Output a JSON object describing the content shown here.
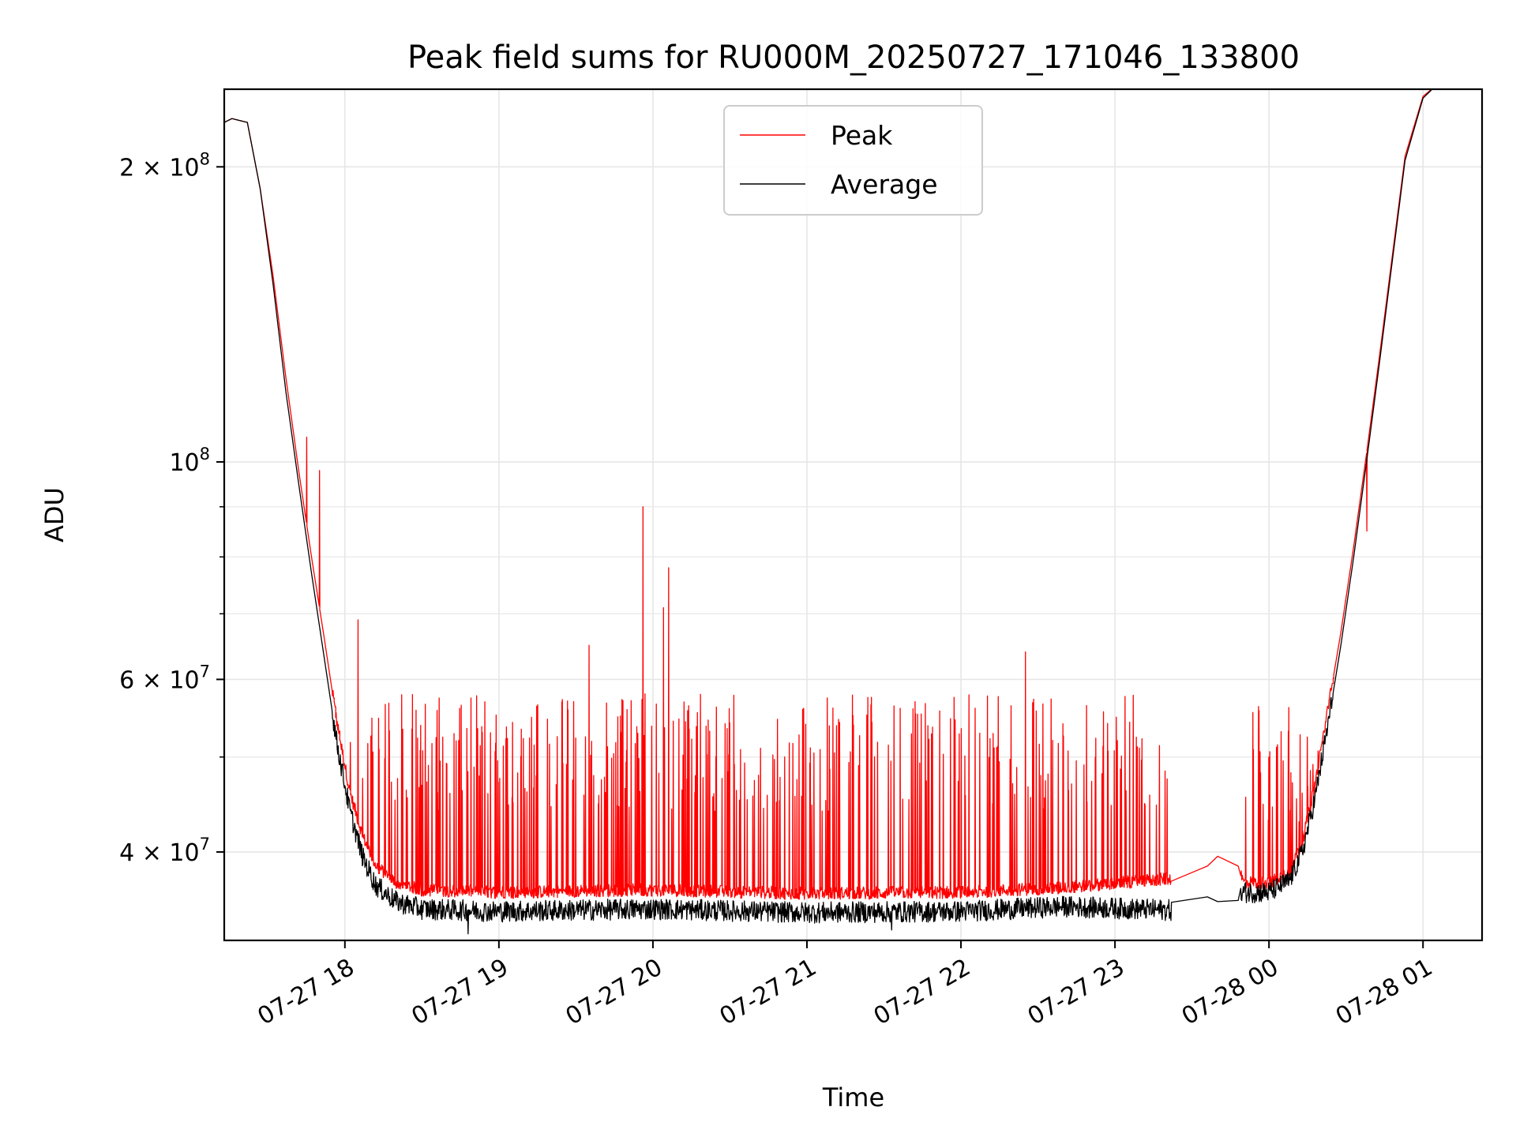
{
  "chart_data": {
    "type": "line",
    "title": "Peak field sums for RU000M_20250727_171046_133800",
    "xlabel": "Time",
    "ylabel": "ADU",
    "y_scale": "log",
    "ylim": [
      32500000,
      240000000
    ],
    "xlim": [
      "2025-07-27 17:13",
      "2025-07-28 01:23"
    ],
    "grid": true,
    "legend_position": "top-center",
    "x_ticks": [
      {
        "t": "2025-07-27 18:00",
        "label": "07-27 18"
      },
      {
        "t": "2025-07-27 19:00",
        "label": "07-27 19"
      },
      {
        "t": "2025-07-27 20:00",
        "label": "07-27 20"
      },
      {
        "t": "2025-07-27 21:00",
        "label": "07-27 21"
      },
      {
        "t": "2025-07-27 22:00",
        "label": "07-27 22"
      },
      {
        "t": "2025-07-27 23:00",
        "label": "07-27 23"
      },
      {
        "t": "2025-07-28 00:00",
        "label": "07-28 00"
      },
      {
        "t": "2025-07-28 01:00",
        "label": "07-28 01"
      }
    ],
    "y_major_ticks": [
      {
        "v": 40000000,
        "base": "4 × 10",
        "exp": "7"
      },
      {
        "v": 60000000,
        "base": "6 × 10",
        "exp": "7"
      },
      {
        "v": 100000000,
        "base": "10",
        "exp": "8"
      },
      {
        "v": 200000000,
        "base": "2 × 10",
        "exp": "8"
      }
    ],
    "y_minor_ticks": [
      50000000,
      70000000,
      80000000,
      90000000
    ],
    "series": [
      {
        "name": "Peak",
        "color": "#ff0000",
        "baseline": [
          [
            "2025-07-27 17:13",
            222000000
          ],
          [
            "2025-07-27 17:16",
            224000000
          ],
          [
            "2025-07-27 17:22",
            222000000
          ],
          [
            "2025-07-27 17:27",
            190000000
          ],
          [
            "2025-07-27 17:32",
            155000000
          ],
          [
            "2025-07-27 17:37",
            122000000
          ],
          [
            "2025-07-27 17:42",
            98000000
          ],
          [
            "2025-07-27 17:47",
            80000000
          ],
          [
            "2025-07-27 17:52",
            66000000
          ],
          [
            "2025-07-27 17:57",
            54000000
          ],
          [
            "2025-07-27 18:02",
            46000000
          ],
          [
            "2025-07-27 18:07",
            41500000
          ],
          [
            "2025-07-27 18:12",
            38800000
          ],
          [
            "2025-07-27 18:20",
            37200000
          ],
          [
            "2025-07-27 18:30",
            36600000
          ],
          [
            "2025-07-27 19:00",
            36400000
          ],
          [
            "2025-07-27 20:00",
            36600000
          ],
          [
            "2025-07-27 21:00",
            36300000
          ],
          [
            "2025-07-27 22:00",
            36400000
          ],
          [
            "2025-07-27 22:40",
            36800000
          ],
          [
            "2025-07-27 23:22",
            37600000
          ],
          [
            "2025-07-27 23:36",
            38700000
          ],
          [
            "2025-07-27 23:40",
            39600000
          ],
          [
            "2025-07-27 23:48",
            38700000
          ],
          [
            "2025-07-27 23:50",
            37300000
          ],
          [
            "2025-07-28 00:00",
            37200000
          ],
          [
            "2025-07-28 00:08",
            38300000
          ],
          [
            "2025-07-28 00:13",
            41000000
          ],
          [
            "2025-07-28 00:18",
            47000000
          ],
          [
            "2025-07-28 00:23",
            56000000
          ],
          [
            "2025-07-28 00:28",
            67000000
          ],
          [
            "2025-07-28 00:33",
            82000000
          ],
          [
            "2025-07-28 00:38",
            102000000
          ],
          [
            "2025-07-28 00:43",
            128000000
          ],
          [
            "2025-07-28 00:48",
            162000000
          ],
          [
            "2025-07-28 00:53",
            205000000
          ],
          [
            "2025-07-28 01:00",
            236000000
          ],
          [
            "2025-07-28 01:05",
            242000000
          ]
        ],
        "spike_ranges": [
          {
            "from": "2025-07-27 17:55",
            "to": "2025-07-27 23:22",
            "spike_min": 44000000,
            "spike_max": 58000000
          },
          {
            "from": "2025-07-27 23:49",
            "to": "2025-07-28 00:25",
            "spike_min": 42000000,
            "spike_max": 57000000
          }
        ],
        "notable_spikes": [
          [
            "2025-07-27 17:45",
            106000000
          ],
          [
            "2025-07-27 17:50",
            98000000
          ],
          [
            "2025-07-27 18:05",
            69000000
          ],
          [
            "2025-07-27 19:35",
            65000000
          ],
          [
            "2025-07-27 19:56",
            90000000
          ],
          [
            "2025-07-27 20:06",
            78000000
          ],
          [
            "2025-07-27 20:04",
            71000000
          ],
          [
            "2025-07-27 22:25",
            64000000
          ],
          [
            "2025-07-28 00:38",
            85000000
          ]
        ]
      },
      {
        "name": "Average",
        "color": "#000000",
        "baseline": [
          [
            "2025-07-27 17:13",
            222000000
          ],
          [
            "2025-07-27 17:16",
            224000000
          ],
          [
            "2025-07-27 17:22",
            222000000
          ],
          [
            "2025-07-27 17:27",
            190000000
          ],
          [
            "2025-07-27 17:32",
            152000000
          ],
          [
            "2025-07-27 17:37",
            118000000
          ],
          [
            "2025-07-27 17:42",
            95000000
          ],
          [
            "2025-07-27 17:47",
            77000000
          ],
          [
            "2025-07-27 17:52",
            63000000
          ],
          [
            "2025-07-27 17:57",
            51500000
          ],
          [
            "2025-07-27 18:02",
            44000000
          ],
          [
            "2025-07-27 18:07",
            39500000
          ],
          [
            "2025-07-27 18:12",
            37000000
          ],
          [
            "2025-07-27 18:20",
            35600000
          ],
          [
            "2025-07-27 18:30",
            35000000
          ],
          [
            "2025-07-27 19:00",
            34800000
          ],
          [
            "2025-07-27 20:00",
            35000000
          ],
          [
            "2025-07-27 21:00",
            34700000
          ],
          [
            "2025-07-27 22:00",
            34800000
          ],
          [
            "2025-07-27 22:40",
            35200000
          ],
          [
            "2025-07-27 23:22",
            34900000
          ],
          [
            "2025-07-27 23:36",
            36000000
          ],
          [
            "2025-07-27 23:40",
            35600000
          ],
          [
            "2025-07-27 23:48",
            35700000
          ],
          [
            "2025-07-27 23:50",
            36400000
          ],
          [
            "2025-07-28 00:00",
            36400000
          ],
          [
            "2025-07-28 00:08",
            37400000
          ],
          [
            "2025-07-28 00:13",
            40000000
          ],
          [
            "2025-07-28 00:18",
            45500000
          ],
          [
            "2025-07-28 00:23",
            54000000
          ],
          [
            "2025-07-28 00:28",
            65000000
          ],
          [
            "2025-07-28 00:33",
            80000000
          ],
          [
            "2025-07-28 00:38",
            100000000
          ],
          [
            "2025-07-28 00:43",
            126000000
          ],
          [
            "2025-07-28 00:48",
            160000000
          ],
          [
            "2025-07-28 00:53",
            203000000
          ],
          [
            "2025-07-28 01:00",
            235000000
          ],
          [
            "2025-07-28 01:05",
            242000000
          ]
        ],
        "notable_dips": [
          [
            "2025-07-27 18:48",
            33000000
          ],
          [
            "2025-07-27 21:33",
            33300000
          ]
        ]
      }
    ]
  }
}
